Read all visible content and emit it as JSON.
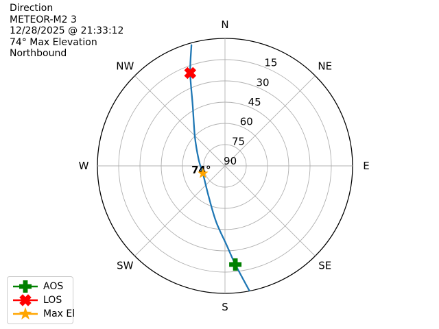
{
  "header": {
    "title": "Direction",
    "satellite": "METEOR-M2 3",
    "timestamp": "12/28/2025 @ 21:33:12",
    "max_elevation": "74° Max Elevation",
    "heading": "Northbound"
  },
  "chart_data": {
    "type": "line",
    "projection": "polar-sky-plot",
    "title": "Direction",
    "compass_labels": [
      "N",
      "NE",
      "E",
      "SE",
      "S",
      "SW",
      "W",
      "NW"
    ],
    "compass_azimuths_deg": [
      0,
      45,
      90,
      135,
      180,
      225,
      270,
      315
    ],
    "elevation_rings_deg": [
      0,
      15,
      30,
      45,
      60,
      75
    ],
    "elevation_tick_labels": [
      "15",
      "30",
      "45",
      "60",
      "75",
      "90"
    ],
    "elevation_tick_values": [
      15,
      30,
      45,
      60,
      75,
      90
    ],
    "track_azimuth_elevation_deg": [
      [
        169.0,
        0.5
      ],
      [
        174.0,
        20.0
      ],
      [
        179.0,
        34.5
      ],
      [
        189.0,
        50.0
      ],
      [
        208.0,
        65.5
      ],
      [
        251.0,
        73.5
      ],
      [
        283.0,
        71.0
      ],
      [
        314.0,
        60.5
      ],
      [
        332.0,
        41.5
      ],
      [
        339.5,
        20.0
      ],
      [
        344.5,
        1.5
      ]
    ],
    "markers": [
      {
        "name": "aos",
        "shape": "plus",
        "color": "#008000",
        "azimuth_deg": 174.0,
        "elevation_deg": 20.0
      },
      {
        "name": "los",
        "shape": "x",
        "color": "#ff0000",
        "azimuth_deg": 339.5,
        "elevation_deg": 20.0
      },
      {
        "name": "max_el",
        "shape": "star",
        "color": "#ffa500",
        "azimuth_deg": 251.0,
        "elevation_deg": 73.5,
        "label": "74°"
      }
    ],
    "track_color": "#1f77b4",
    "grid_color": "#b0b0b0",
    "outline_color": "#000000",
    "label_color": "#000000",
    "legend_position": "lower-left",
    "grid": true
  },
  "legend": {
    "items": [
      {
        "label": "AOS",
        "shape": "plus",
        "color": "#008000"
      },
      {
        "label": "LOS",
        "shape": "x",
        "color": "#ff0000"
      },
      {
        "label": "Max El",
        "shape": "star",
        "color": "#ffa500"
      }
    ]
  }
}
